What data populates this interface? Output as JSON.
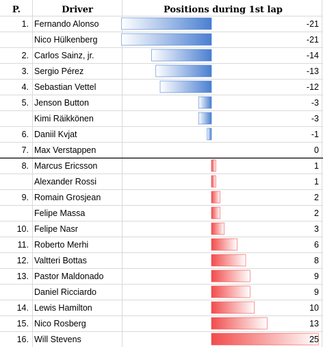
{
  "header": {
    "position_label": "P.",
    "driver_label": "Driver",
    "chart_label": "Positions during 1st lap"
  },
  "colors": {
    "gain": "#4a7fd1",
    "loss": "#f24b4b",
    "grid": "#d9d9d9",
    "divider": "#000000"
  },
  "chart_data": {
    "type": "bar",
    "title": "Positions during 1st lap",
    "orientation": "horizontal",
    "xlim": [
      -21,
      25
    ],
    "columns": [
      "P.",
      "Driver",
      "Positions during 1st lap"
    ],
    "rows": [
      {
        "position": "1.",
        "driver": "Fernando Alonso",
        "value": -21
      },
      {
        "position": "",
        "driver": "Nico Hülkenberg",
        "value": -21
      },
      {
        "position": "2.",
        "driver": "Carlos Sainz, jr.",
        "value": -14
      },
      {
        "position": "3.",
        "driver": "Sergio Pérez",
        "value": -13
      },
      {
        "position": "4.",
        "driver": "Sebastian Vettel",
        "value": -12
      },
      {
        "position": "5.",
        "driver": "Jenson Button",
        "value": -3
      },
      {
        "position": "",
        "driver": "Kimi Räikkönen",
        "value": -3
      },
      {
        "position": "6.",
        "driver": "Daniil Kvjat",
        "value": -1
      },
      {
        "position": "7.",
        "driver": "Max Verstappen",
        "value": 0
      },
      {
        "position": "8.",
        "driver": "Marcus Ericsson",
        "value": 1
      },
      {
        "position": "",
        "driver": "Alexander Rossi",
        "value": 1
      },
      {
        "position": "9.",
        "driver": "Romain Grosjean",
        "value": 2
      },
      {
        "position": "",
        "driver": "Felipe Massa",
        "value": 2
      },
      {
        "position": "10.",
        "driver": "Felipe Nasr",
        "value": 3
      },
      {
        "position": "11.",
        "driver": "Roberto Merhi",
        "value": 6
      },
      {
        "position": "12.",
        "driver": "Valtteri Bottas",
        "value": 8
      },
      {
        "position": "13.",
        "driver": "Pastor Maldonado",
        "value": 9
      },
      {
        "position": "",
        "driver": "Daniel Ricciardo",
        "value": 9
      },
      {
        "position": "14.",
        "driver": "Lewis Hamilton",
        "value": 10
      },
      {
        "position": "15.",
        "driver": "Nico Rosberg",
        "value": 13
      },
      {
        "position": "16.",
        "driver": "Will Stevens",
        "value": 25
      }
    ]
  }
}
